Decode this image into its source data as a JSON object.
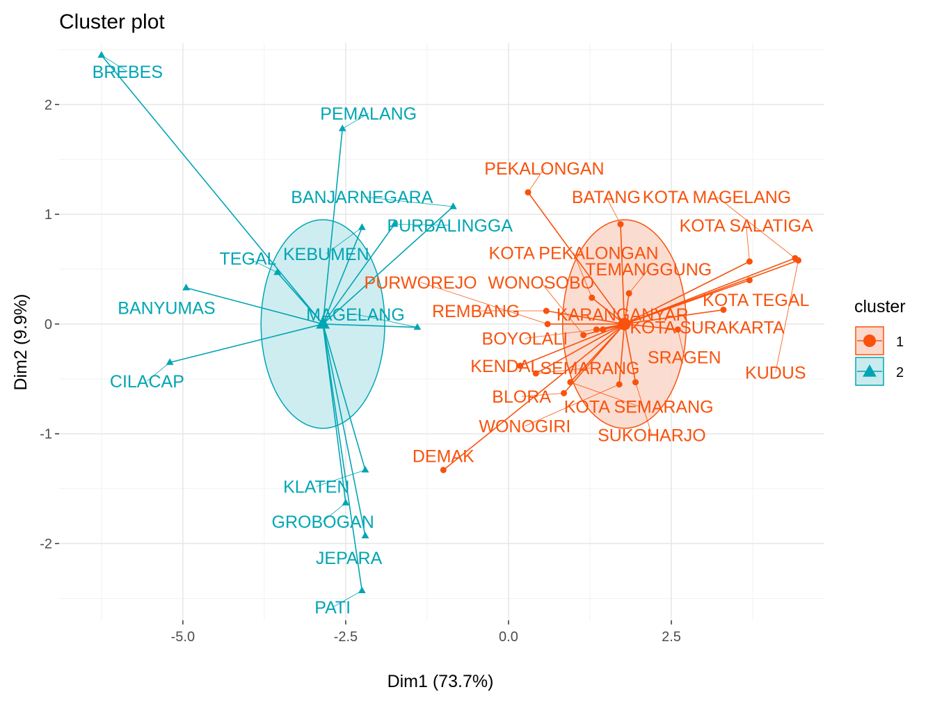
{
  "chart_data": {
    "type": "scatter",
    "title": "Cluster plot",
    "xlabel": "Dim1 (73.7%)",
    "ylabel": "Dim2 (9.9%)",
    "xlim": [
      -6.9,
      4.85
    ],
    "ylim": [
      -2.7,
      2.56
    ],
    "x_ticks": [
      -5.0,
      -2.5,
      0.0,
      2.5
    ],
    "x_tick_labels": [
      "-5.0",
      "-2.5",
      "0.0",
      "2.5"
    ],
    "y_ticks": [
      -2,
      -1,
      0,
      1,
      2
    ],
    "y_tick_labels": [
      "-2",
      "-1",
      "0",
      "1",
      "2"
    ],
    "grid": true,
    "legend": {
      "title": "cluster",
      "placement": "right",
      "entries": [
        {
          "label": "1",
          "color": "#f8520c",
          "shape": "circle"
        },
        {
          "label": "2",
          "color": "#00a5b4",
          "shape": "triangle"
        }
      ]
    },
    "clusters": [
      {
        "name": "1",
        "color": "#f8520c",
        "fill": "#fbd8cc",
        "shape": "circle",
        "center": [
          1.78,
          0.0
        ],
        "ellipse": {
          "rx": 0.95,
          "ry": 0.95
        },
        "points": [
          {
            "label": "PEKALONGAN",
            "x": 0.3,
            "y": 1.2,
            "lx": 0.55,
            "ly": 1.42
          },
          {
            "label": "BATANG",
            "x": 1.72,
            "y": 0.91,
            "lx": 1.5,
            "ly": 1.16
          },
          {
            "label": "KOTA MAGELANG",
            "x": 4.4,
            "y": 0.6,
            "lx": 3.2,
            "ly": 1.16
          },
          {
            "label": "KOTA SALATIGA",
            "x": 3.7,
            "y": 0.57,
            "lx": 3.65,
            "ly": 0.9
          },
          {
            "label": "KOTA PEKALONGAN",
            "x": 1.28,
            "y": 0.24,
            "lx": 1.0,
            "ly": 0.65
          },
          {
            "label": "TEMANGGUNG",
            "x": 1.85,
            "y": 0.28,
            "lx": 2.15,
            "ly": 0.5
          },
          {
            "label": "PURWOREJO",
            "x": 0.6,
            "y": 0.0,
            "lx": -1.35,
            "ly": 0.38
          },
          {
            "label": "WONOSOBO",
            "x": 1.15,
            "y": -0.1,
            "lx": 0.5,
            "ly": 0.38
          },
          {
            "label": "REMBANG",
            "x": 0.58,
            "y": 0.12,
            "lx": -0.5,
            "ly": 0.12
          },
          {
            "label": "KARANGANYAR",
            "x": 1.45,
            "y": -0.05,
            "lx": 1.75,
            "ly": 0.09
          },
          {
            "label": "KOTA TEGAL",
            "x": 3.7,
            "y": 0.4,
            "lx": 3.8,
            "ly": 0.22
          },
          {
            "label": "KOTA SURAKARTA",
            "x": 3.3,
            "y": 0.13,
            "lx": 3.05,
            "ly": -0.03
          },
          {
            "label": "BOYOLALI",
            "x": 1.35,
            "y": -0.05,
            "lx": 0.25,
            "ly": -0.13
          },
          {
            "label": "SRAGEN",
            "x": 2.6,
            "y": -0.05,
            "lx": 2.7,
            "ly": -0.3
          },
          {
            "label": "KUDUS",
            "x": 4.45,
            "y": 0.58,
            "lx": 4.1,
            "ly": -0.44
          },
          {
            "label": "KENDAL",
            "x": 0.18,
            "y": -0.38,
            "lx": -0.05,
            "ly": -0.38
          },
          {
            "label": "SEMARANG",
            "x": 0.42,
            "y": -0.45,
            "lx": 1.25,
            "ly": -0.4
          },
          {
            "label": "BLORA",
            "x": 0.85,
            "y": -0.63,
            "lx": 0.2,
            "ly": -0.66
          },
          {
            "label": "KOTA SEMARANG",
            "x": 0.95,
            "y": -0.53,
            "lx": 2.0,
            "ly": -0.75
          },
          {
            "label": "WONOGIRI",
            "x": 1.7,
            "y": -0.55,
            "lx": 0.25,
            "ly": -0.93
          },
          {
            "label": "SUKOHARJO",
            "x": 1.95,
            "y": -0.53,
            "lx": 2.2,
            "ly": -1.01
          },
          {
            "label": "DEMAK",
            "x": -1.0,
            "y": -1.33,
            "lx": -1.0,
            "ly": -1.2
          }
        ]
      },
      {
        "name": "2",
        "color": "#00a5b4",
        "fill": "#c9ebee",
        "shape": "triangle",
        "center": [
          -2.85,
          0.0
        ],
        "ellipse": {
          "rx": 0.95,
          "ry": 0.95
        },
        "points": [
          {
            "label": "BREBES",
            "x": -6.25,
            "y": 2.45,
            "lx": -5.85,
            "ly": 2.3
          },
          {
            "label": "PEMALANG",
            "x": -2.55,
            "y": 1.78,
            "lx": -2.15,
            "ly": 1.92
          },
          {
            "label": "BANJARNEGARA",
            "x": -0.85,
            "y": 1.07,
            "lx": -2.25,
            "ly": 1.16
          },
          {
            "label": "PURBALINGGA",
            "x": -1.75,
            "y": 0.91,
            "lx": -0.9,
            "ly": 0.9
          },
          {
            "label": "KEBUMEN",
            "x": -2.25,
            "y": 0.88,
            "lx": -2.8,
            "ly": 0.64
          },
          {
            "label": "TEGAL",
            "x": -3.55,
            "y": 0.47,
            "lx": -4.0,
            "ly": 0.6
          },
          {
            "label": "MAGELANG",
            "x": -1.4,
            "y": -0.03,
            "lx": -2.35,
            "ly": 0.09
          },
          {
            "label": "BANYUMAS",
            "x": -4.95,
            "y": 0.33,
            "lx": -5.25,
            "ly": 0.15
          },
          {
            "label": "CILACAP",
            "x": -5.2,
            "y": -0.35,
            "lx": -5.55,
            "ly": -0.52
          },
          {
            "label": "KLATEN",
            "x": -2.2,
            "y": -1.33,
            "lx": -2.95,
            "ly": -1.48
          },
          {
            "label": "GROBOGAN",
            "x": -2.5,
            "y": -1.63,
            "lx": -2.85,
            "ly": -1.8
          },
          {
            "label": "JEPARA",
            "x": -2.2,
            "y": -1.93,
            "lx": -2.45,
            "ly": -2.13
          },
          {
            "label": "PATI",
            "x": -2.25,
            "y": -2.43,
            "lx": -2.7,
            "ly": -2.58
          }
        ]
      }
    ]
  }
}
